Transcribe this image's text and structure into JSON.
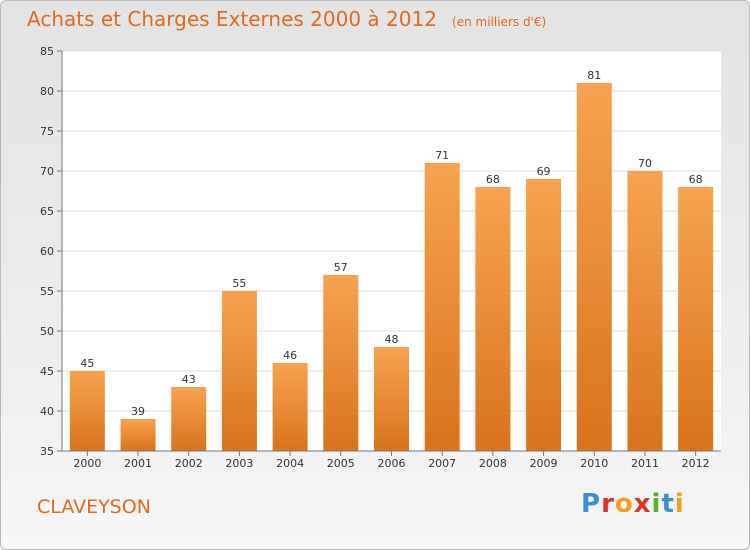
{
  "header": {
    "title": "Achats et Charges Externes 2000 à 2012",
    "unit": "(en milliers d'€)"
  },
  "footer": {
    "commune": "CLAVEYSON",
    "logo": "Proxiti"
  },
  "colors": {
    "bar_top": "#f7a34f",
    "bar_bottom": "#d9731d",
    "title": "#e06a1e"
  },
  "chart_data": {
    "type": "bar",
    "categories": [
      "2000",
      "2001",
      "2002",
      "2003",
      "2004",
      "2005",
      "2006",
      "2007",
      "2008",
      "2009",
      "2010",
      "2011",
      "2012"
    ],
    "values": [
      45,
      39,
      43,
      55,
      46,
      57,
      48,
      71,
      68,
      69,
      81,
      70,
      68
    ],
    "title": "Achats et Charges Externes 2000 à 2012",
    "ylim": [
      35,
      85
    ],
    "yticks": [
      35,
      40,
      45,
      50,
      55,
      60,
      65,
      70,
      75,
      80,
      85
    ],
    "grid": true,
    "legend": "none"
  }
}
